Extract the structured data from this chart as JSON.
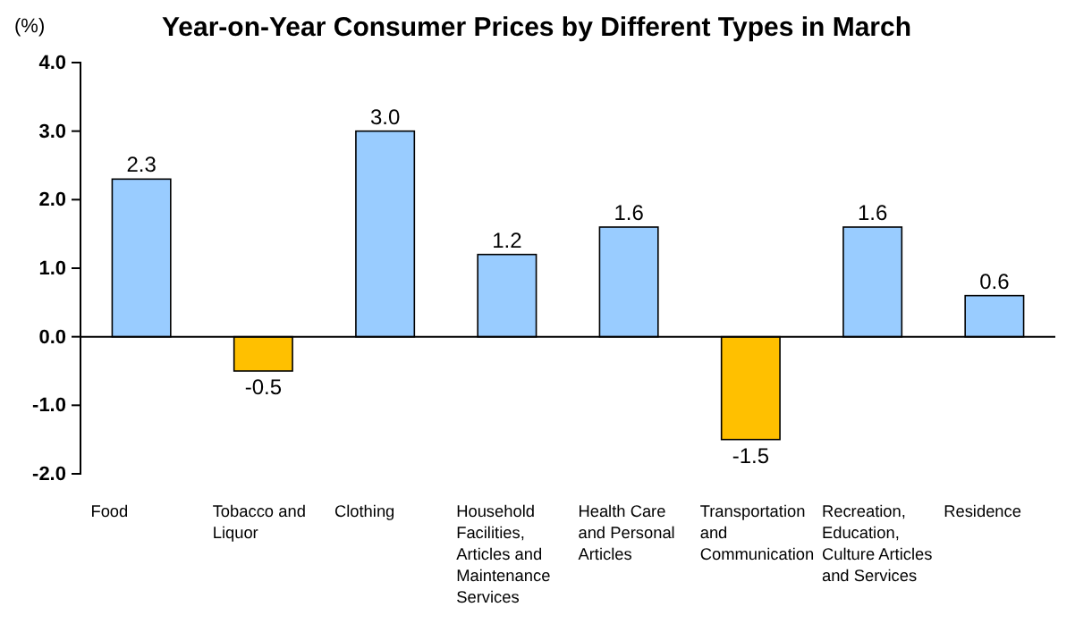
{
  "chart_data": {
    "type": "bar",
    "title": "Year-on-Year Consumer Prices by Different Types in March",
    "ylabel": "(%)",
    "categories": [
      "Food",
      "Tobacco and Liquor",
      "Clothing",
      "Household Facilities, Articles and Maintenance Services",
      "Health Care and Personal Articles",
      "Transportation and Communication",
      "Recreation, Education, Culture Articles and Services",
      "Residence"
    ],
    "values": [
      2.3,
      -0.5,
      3.0,
      1.2,
      1.6,
      -1.5,
      1.6,
      0.6
    ],
    "colors": [
      "#99ccff",
      "#ffc000",
      "#99ccff",
      "#99ccff",
      "#99ccff",
      "#ffc000",
      "#99ccff",
      "#99ccff"
    ],
    "value_labels": [
      "2.3",
      "-0.5",
      "3.0",
      "1.2",
      "1.6",
      "-1.5",
      "1.6",
      "0.6"
    ],
    "ylim": [
      -2,
      4
    ],
    "yticks": [
      {
        "value": -2,
        "label": "-2.0"
      },
      {
        "value": -1,
        "label": "-1.0"
      },
      {
        "value": 0,
        "label": "0.0"
      },
      {
        "value": 1,
        "label": "1.0"
      },
      {
        "value": 2,
        "label": "2.0"
      },
      {
        "value": 3,
        "label": "3.0"
      },
      {
        "value": 4,
        "label": "4.0"
      }
    ]
  }
}
